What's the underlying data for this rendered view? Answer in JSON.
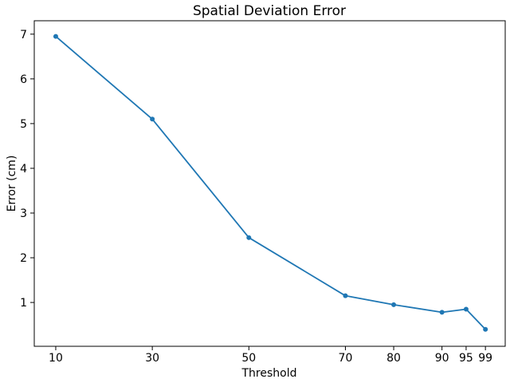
{
  "chart_data": {
    "type": "line",
    "title": "Spatial Deviation Error",
    "xlabel": "Threshold",
    "ylabel": "Error (cm)",
    "x": [
      10,
      30,
      50,
      70,
      80,
      90,
      95,
      99
    ],
    "y": [
      6.95,
      5.1,
      2.45,
      1.15,
      0.95,
      0.78,
      0.85,
      0.4
    ],
    "xticks": [
      10,
      30,
      50,
      70,
      80,
      90,
      95,
      99
    ],
    "yticks": [
      1,
      2,
      3,
      4,
      5,
      6,
      7
    ],
    "xlim": [
      5.55,
      103.1
    ],
    "ylim": [
      0.02,
      7.3
    ],
    "line_color": "#1f77b4",
    "spine_color": "#000000",
    "marker": "circle",
    "grid": false,
    "legend_position": "none",
    "background_color": "#ffffff"
  }
}
